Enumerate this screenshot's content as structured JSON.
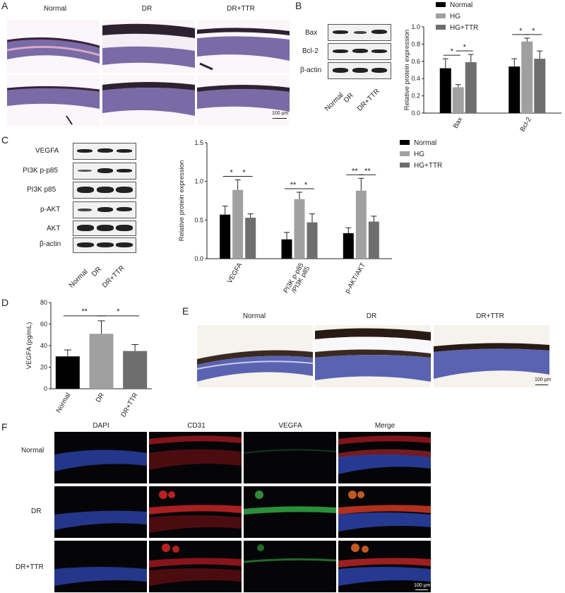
{
  "panels": {
    "A": {
      "letter": "A",
      "col_labels": [
        "Normal",
        "DR",
        "DR+TTR"
      ],
      "scale_bar": "100 μm"
    },
    "B": {
      "letter": "B",
      "blot_rows": [
        "Bax",
        "Bcl-2",
        "β-actin"
      ],
      "blot_cols": [
        "Normal",
        "DR",
        "DR+TTR"
      ]
    },
    "C": {
      "letter": "C",
      "blot_rows": [
        "VEGFA",
        "PI3K p-p85",
        "PI3K p85",
        "p-AKT",
        "AKT",
        "β-actin"
      ],
      "blot_cols": [
        "Normal",
        "DR",
        "DR+TTR"
      ]
    },
    "D": {
      "letter": "D"
    },
    "E": {
      "letter": "E",
      "col_labels": [
        "Normal",
        "DR",
        "DR+TTR"
      ],
      "scale_bar": "100 μm"
    },
    "F": {
      "letter": "F",
      "col_labels": [
        "DAPI",
        "CD31",
        "VEGFA",
        "Merge"
      ],
      "row_labels": [
        "Normal",
        "DR",
        "DR+TTR"
      ],
      "scale_bar": "100 μm"
    }
  },
  "colors": {
    "normal": "#000000",
    "hg": "#a0a0a0",
    "hgttr": "#6e6e6e"
  },
  "chart_data": [
    {
      "id": "B",
      "type": "bar",
      "categories": [
        "Bax",
        "Bcl-2"
      ],
      "series": [
        {
          "name": "Normal",
          "values": [
            0.52,
            0.54
          ],
          "errors": [
            0.11,
            0.09
          ]
        },
        {
          "name": "HG",
          "values": [
            0.3,
            0.83
          ],
          "errors": [
            0.03,
            0.04
          ]
        },
        {
          "name": "HG+TTR",
          "values": [
            0.59,
            0.63
          ],
          "errors": [
            0.09,
            0.09
          ]
        }
      ],
      "ylabel": "Relative protein expression",
      "ylim": [
        0,
        1.0
      ],
      "yticks": [
        "0.0",
        "0.2",
        "0.4",
        "0.6",
        "0.8",
        "1.0"
      ],
      "significance": [
        {
          "cat": 0,
          "from": 0,
          "to": 1,
          "label": "*"
        },
        {
          "cat": 0,
          "from": 1,
          "to": 2,
          "label": "*"
        },
        {
          "cat": 1,
          "from": 0,
          "to": 1,
          "label": "*"
        },
        {
          "cat": 1,
          "from": 1,
          "to": 2,
          "label": "*"
        }
      ],
      "legend_position": "top"
    },
    {
      "id": "C",
      "type": "bar",
      "categories": [
        "VEGFA",
        "PI3K p-p85\n/PI3K p85",
        "p-AKT/AKT"
      ],
      "series": [
        {
          "name": "Normal",
          "values": [
            0.57,
            0.25,
            0.33
          ],
          "errors": [
            0.11,
            0.09,
            0.07
          ]
        },
        {
          "name": "HG",
          "values": [
            0.89,
            0.77,
            0.88
          ],
          "errors": [
            0.13,
            0.09,
            0.16
          ]
        },
        {
          "name": "HG+TTR",
          "values": [
            0.53,
            0.47,
            0.48
          ],
          "errors": [
            0.05,
            0.11,
            0.07
          ]
        }
      ],
      "ylabel": "Relative protein expression",
      "ylim": [
        0,
        1.5
      ],
      "yticks": [
        "0.0",
        "0.5",
        "1.0",
        "1.5"
      ],
      "significance": [
        {
          "cat": 0,
          "from": 0,
          "to": 1,
          "label": "*"
        },
        {
          "cat": 0,
          "from": 1,
          "to": 2,
          "label": "*"
        },
        {
          "cat": 1,
          "from": 0,
          "to": 1,
          "label": "**"
        },
        {
          "cat": 1,
          "from": 1,
          "to": 2,
          "label": "*"
        },
        {
          "cat": 2,
          "from": 0,
          "to": 1,
          "label": "**"
        },
        {
          "cat": 2,
          "from": 1,
          "to": 2,
          "label": "**"
        }
      ],
      "legend_position": "right"
    },
    {
      "id": "D",
      "type": "bar",
      "categories": [
        "Normal",
        "DR",
        "DR+TTR"
      ],
      "values": [
        30,
        51,
        35
      ],
      "errors": [
        6,
        12,
        6
      ],
      "ylabel": "VEGFA (pg/mL)",
      "ylim": [
        0,
        80
      ],
      "yticks": [
        "0",
        "20",
        "40",
        "60",
        "80"
      ],
      "significance": [
        {
          "from": 0,
          "to": 1,
          "label": "**"
        },
        {
          "from": 1,
          "to": 2,
          "label": "*"
        }
      ]
    }
  ]
}
